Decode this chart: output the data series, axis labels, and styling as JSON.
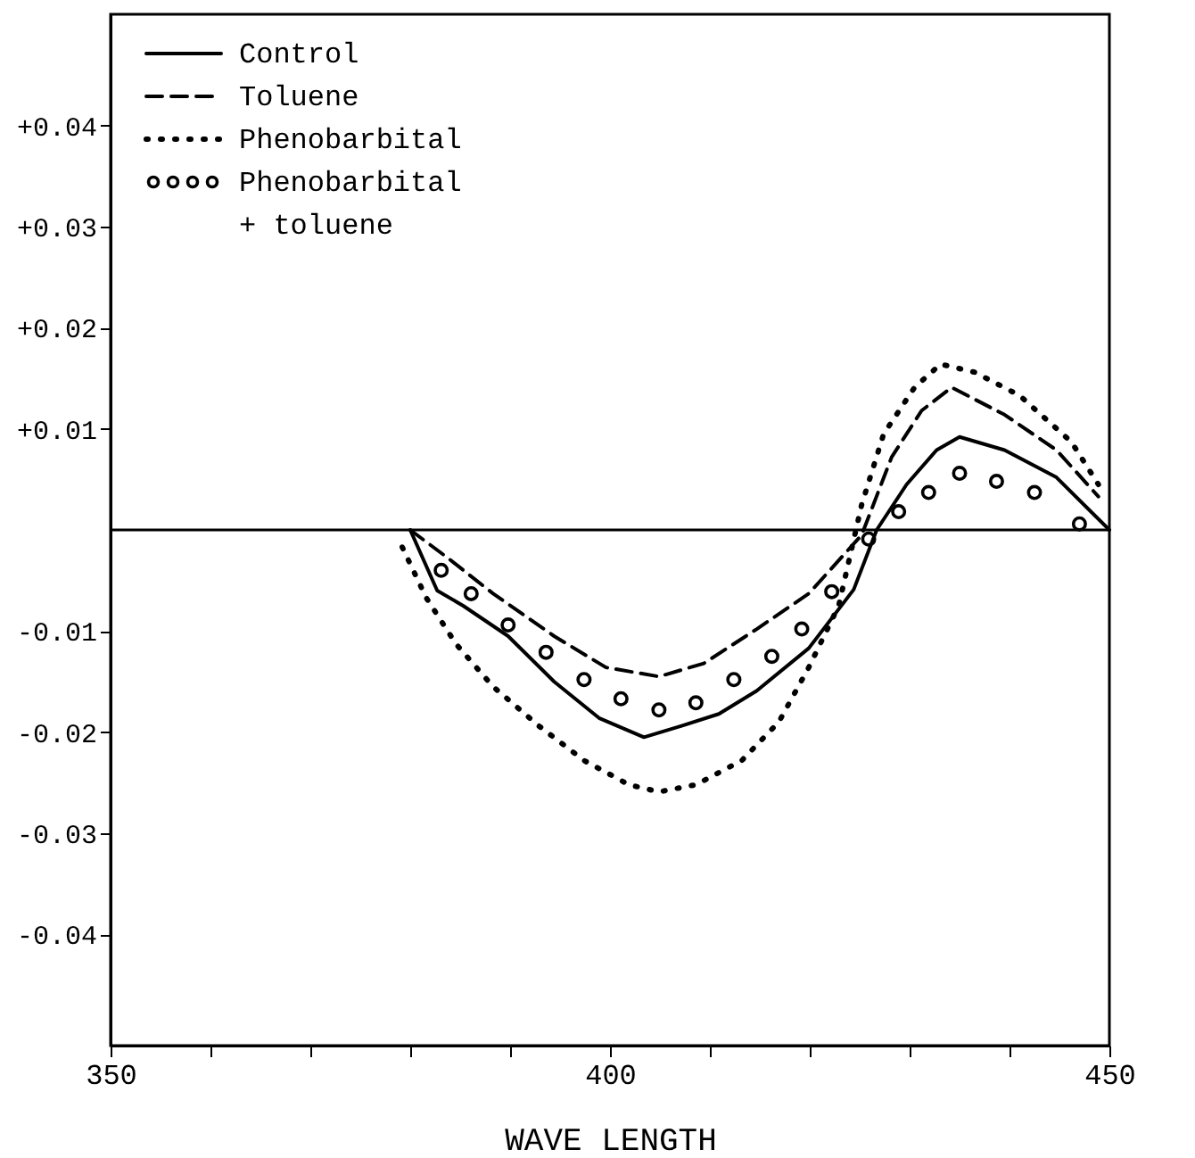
{
  "chart_data": {
    "type": "line",
    "xlabel": "WAVE LENGTH",
    "xlim": [
      350,
      450
    ],
    "ylim": [
      -0.051,
      0.051
    ],
    "xticks": [
      350,
      {
        "value": 360,
        "label": null
      },
      {
        "value": 370,
        "label": null
      },
      {
        "value": 380,
        "label": null
      },
      {
        "value": 390,
        "label": null
      },
      400,
      {
        "value": 410,
        "label": null
      },
      {
        "value": 420,
        "label": null
      },
      {
        "value": 430,
        "label": null
      },
      {
        "value": 440,
        "label": null
      },
      450
    ],
    "yticks": [
      {
        "value": 0.04,
        "label": "+0.04"
      },
      {
        "value": 0.03,
        "label": "+0.03"
      },
      {
        "value": 0.02,
        "label": "+0.02"
      },
      {
        "value": 0.01,
        "label": "+0.01"
      },
      -0.01,
      -0.02,
      -0.03,
      -0.04
    ],
    "legend": "top left",
    "grid": false,
    "ref_lines": [
      {
        "axis": "y",
        "value": 0,
        "color": "#000000",
        "line_style": "solid"
      }
    ],
    "series": [
      {
        "name": "Control",
        "color": "#000000",
        "line_style": "solid",
        "x": [
          380,
          382.7,
          385.3,
          389.8,
          394.4,
          398.9,
          403.4,
          407.1,
          410.9,
          414.7,
          419.9,
          424.4,
          426.7,
          429.7,
          432.7,
          435,
          439.5,
          444.7,
          450
        ],
        "values": [
          0,
          -0.006,
          -0.0075,
          -0.0105,
          -0.015,
          -0.0186,
          -0.0205,
          -0.0194,
          -0.0182,
          -0.0159,
          -0.0117,
          -0.0059,
          0,
          0.0045,
          0.0079,
          0.0092,
          0.0079,
          0.0052,
          0
        ]
      },
      {
        "name": "Toluene",
        "color": "#000000",
        "line_style": "dashed",
        "x": [
          380,
          383.8,
          388.3,
          394.4,
          399.6,
          404.9,
          409.4,
          414.7,
          419.9,
          425.2,
          428.2,
          431.2,
          434.2,
          439.5,
          444.7,
          448.9
        ],
        "values": [
          0,
          -0.0028,
          -0.0063,
          -0.0105,
          -0.0136,
          -0.0145,
          -0.0132,
          -0.0098,
          -0.0063,
          -0.0005,
          0.0072,
          0.0118,
          0.0141,
          0.0114,
          0.0079,
          0.0033
        ]
      },
      {
        "name": "Phenobarbital",
        "color": "#000000",
        "line_style": "dotted",
        "x": [
          379.2,
          381.6,
          384.6,
          388.3,
          392.9,
          397.4,
          401.9,
          404.9,
          408.6,
          413.2,
          416.9,
          419.9,
          422.9,
          425.2,
          427.4,
          430.5,
          433.1,
          436.5,
          441,
          446.2,
          448.9
        ],
        "values": [
          -0.0017,
          -0.0067,
          -0.0113,
          -0.0155,
          -0.0194,
          -0.0228,
          -0.0252,
          -0.0259,
          -0.0252,
          -0.0228,
          -0.019,
          -0.0136,
          -0.0075,
          0.0025,
          0.0095,
          0.0141,
          0.0164,
          0.0156,
          0.0133,
          0.0087,
          0.0045
        ]
      },
      {
        "name": "Phenobarbital + toluene",
        "color": "#000000",
        "type": "scatter",
        "marker": "circle",
        "x": [
          383.1,
          386.1,
          389.8,
          393.6,
          397.4,
          401.1,
          404.9,
          408.6,
          412.4,
          416.2,
          419.2,
          422.2,
          425.9,
          428.9,
          431.9,
          435,
          438.7,
          442.5,
          447
        ],
        "values": [
          -0.004,
          -0.0063,
          -0.0094,
          -0.0121,
          -0.0148,
          -0.0167,
          -0.0178,
          -0.0171,
          -0.0148,
          -0.0125,
          -0.0098,
          -0.0061,
          -0.0009,
          0.0018,
          0.0037,
          0.0056,
          0.0048,
          0.0037,
          0.0006
        ]
      }
    ]
  }
}
